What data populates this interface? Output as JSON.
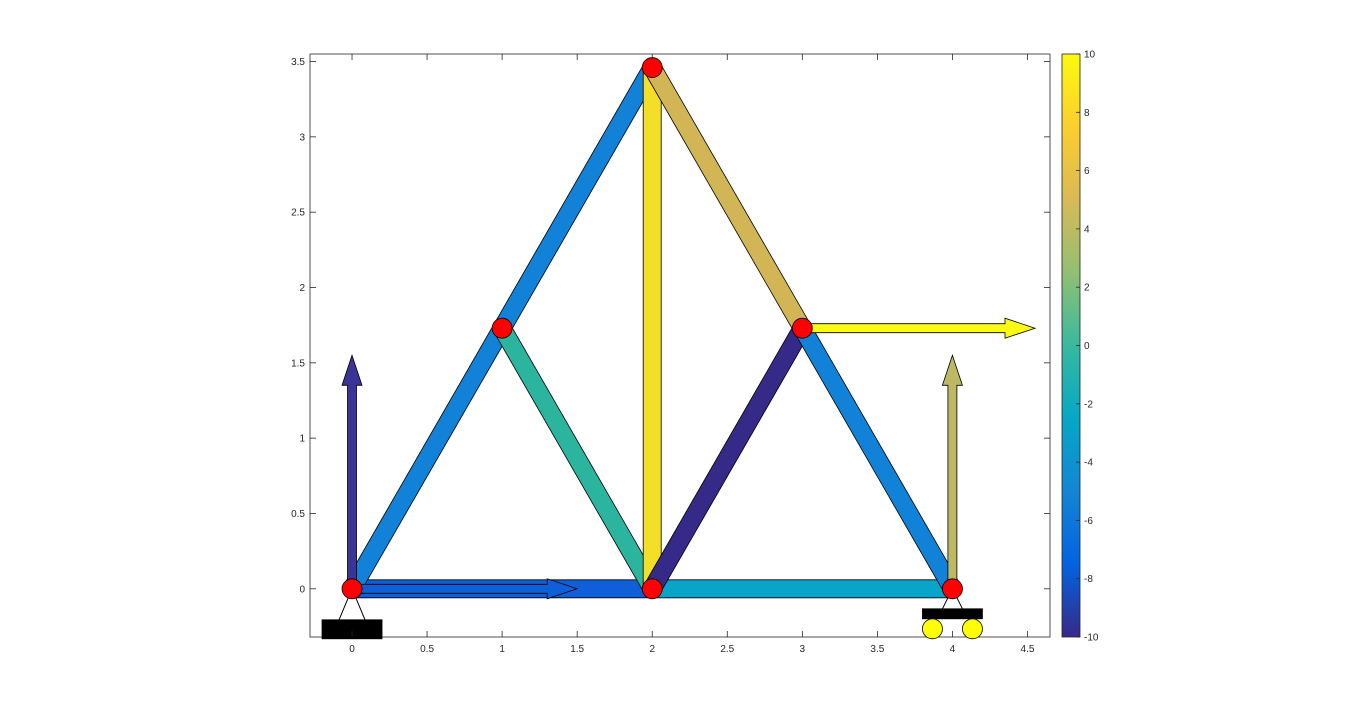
{
  "chart_data": [
    {
      "type": "scatter",
      "title": "",
      "xlabel": "",
      "ylabel": "",
      "xlim": [
        -0.28,
        4.65
      ],
      "ylim": [
        -0.32,
        3.55
      ],
      "xticks": [
        "0",
        "0.5",
        "1",
        "1.5",
        "2",
        "2.5",
        "3",
        "3.5",
        "4",
        "4.5"
      ],
      "yticks": [
        "0",
        "0.5",
        "1",
        "1.5",
        "2",
        "2.5",
        "3",
        "3.5"
      ],
      "grid": false,
      "nodes": [
        {
          "x": 0,
          "y": 0
        },
        {
          "x": 2,
          "y": 0
        },
        {
          "x": 4,
          "y": 0
        },
        {
          "x": 1,
          "y": 1.73
        },
        {
          "x": 3,
          "y": 1.73
        },
        {
          "x": 2,
          "y": 3.46
        }
      ],
      "members": [
        {
          "from": 0,
          "to": 1,
          "force": -7.1,
          "color": "#0F5FD9"
        },
        {
          "from": 1,
          "to": 2,
          "force": -1.6,
          "color": "#08A5C9"
        },
        {
          "from": 0,
          "to": 3,
          "force": -5.2,
          "color": "#1281D8"
        },
        {
          "from": 3,
          "to": 5,
          "force": -5.2,
          "color": "#1281D8"
        },
        {
          "from": 3,
          "to": 1,
          "force": 0.9,
          "color": "#2BB59E"
        },
        {
          "from": 1,
          "to": 5,
          "force": 8.9,
          "color": "#F3DF27"
        },
        {
          "from": 5,
          "to": 4,
          "force": 5.1,
          "color": "#D2B656"
        },
        {
          "from": 1,
          "to": 4,
          "force": -9.7,
          "color": "#352A87"
        },
        {
          "from": 4,
          "to": 2,
          "force": -5.2,
          "color": "#1281D8"
        }
      ],
      "loads": [
        {
          "x": 0,
          "y": 0,
          "dx": 1.5,
          "dy": 0,
          "force": -7.1,
          "color": "#0F5FD9"
        },
        {
          "x": 3,
          "y": 1.73,
          "dx": 1.55,
          "dy": 0,
          "force": 10,
          "color": "#FAFA14"
        }
      ],
      "reactions": [
        {
          "x": 0,
          "y": 0,
          "dx": 0,
          "dy": 1.55,
          "force": -9.3,
          "color": "#3A3496"
        },
        {
          "x": 4,
          "y": 0,
          "dx": 0,
          "dy": 1.55,
          "force": 4.2,
          "color": "#BDB863"
        }
      ],
      "supports": [
        {
          "node": 0,
          "kind": "pinned"
        },
        {
          "node": 2,
          "kind": "roller"
        }
      ],
      "colorbar": {
        "min": -10,
        "max": 10,
        "ticks": [
          "-10",
          "-8",
          "-6",
          "-4",
          "-2",
          "0",
          "2",
          "4",
          "6",
          "8",
          "10"
        ]
      },
      "colormap": [
        "#352A87",
        "#0363E1",
        "#1485D4",
        "#06A7C6",
        "#38B99E",
        "#92BF73",
        "#D9BA56",
        "#FCCE2E",
        "#F9FB0E"
      ],
      "node_color": "#FF0000",
      "roller_wheel_color": "#FFFF00",
      "support_color": "#000000"
    }
  ]
}
